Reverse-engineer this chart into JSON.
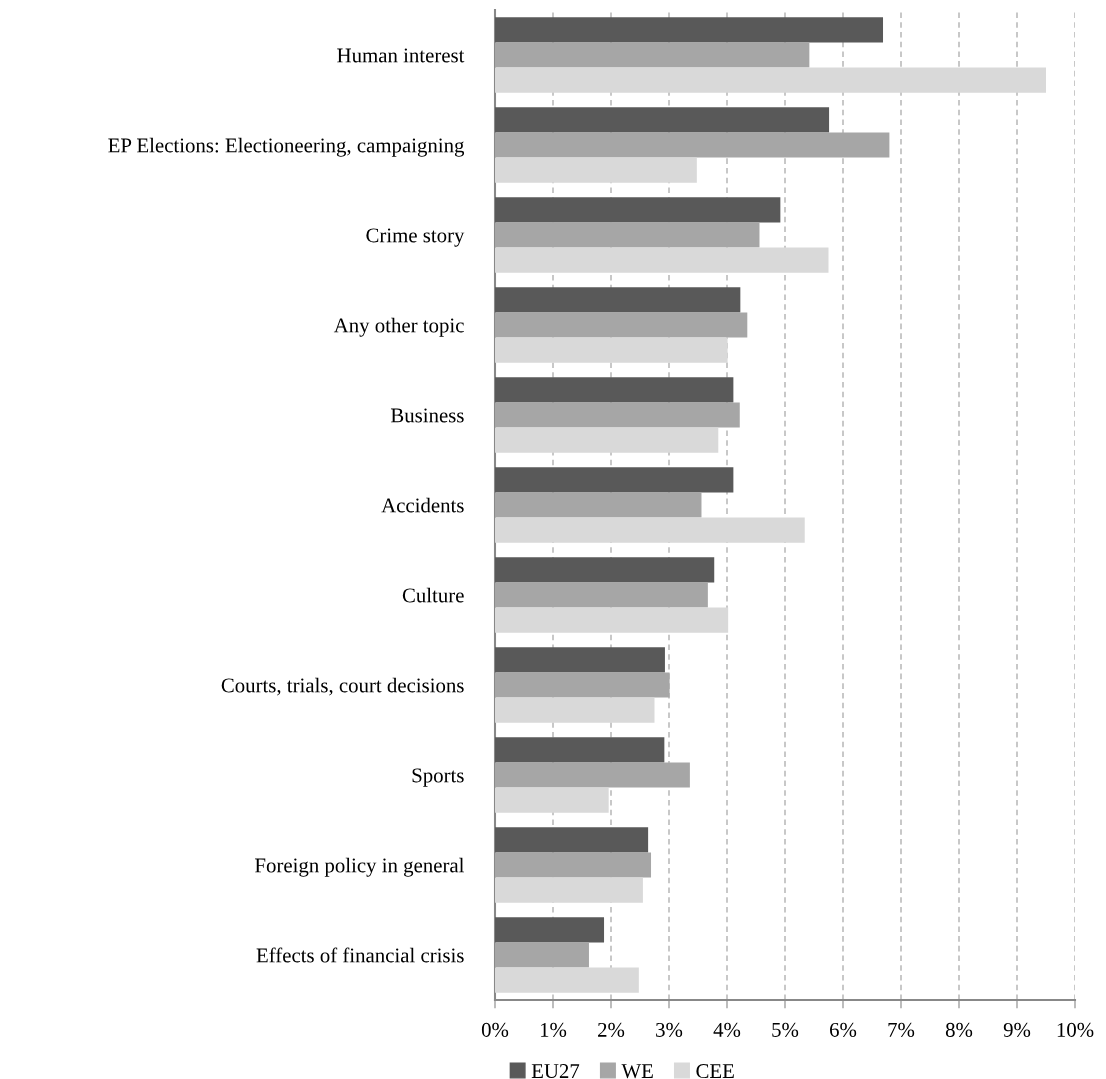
{
  "chart_data": {
    "type": "bar",
    "orientation": "horizontal",
    "categories": [
      "Human interest",
      "EP Elections: Electioneering, campaigning",
      "Crime story",
      "Any other topic",
      "Business",
      "Accidents",
      "Culture",
      "Courts, trials, court decisions",
      "Sports",
      "Foreign policy in general",
      "Effects of financial crisis"
    ],
    "series": [
      {
        "name": "EU27",
        "color": "#595959",
        "values": [
          6.69,
          5.76,
          4.92,
          4.23,
          4.11,
          4.11,
          3.78,
          2.93,
          2.92,
          2.64,
          1.88
        ]
      },
      {
        "name": "WE",
        "color": "#a6a6a6",
        "values": [
          5.42,
          6.8,
          4.56,
          4.35,
          4.22,
          3.56,
          3.67,
          3.01,
          3.36,
          2.69,
          1.62
        ]
      },
      {
        "name": "CEE",
        "color": "#d9d9d9",
        "values": [
          9.5,
          3.48,
          5.75,
          4.01,
          3.85,
          5.34,
          4.02,
          2.75,
          1.96,
          2.55,
          2.48
        ]
      }
    ],
    "xlim": [
      0,
      10
    ],
    "xticks": [
      {
        "value": 0,
        "label": "0%"
      },
      {
        "value": 1,
        "label": "1%"
      },
      {
        "value": 2,
        "label": "2%"
      },
      {
        "value": 3,
        "label": "3%"
      },
      {
        "value": 4,
        "label": "4%"
      },
      {
        "value": 5,
        "label": "5%"
      },
      {
        "value": 6,
        "label": "6%"
      },
      {
        "value": 7,
        "label": "7%"
      },
      {
        "value": 8,
        "label": "8%"
      },
      {
        "value": 9,
        "label": "9%"
      },
      {
        "value": 10,
        "label": "10%"
      }
    ],
    "grid": "x",
    "legend": "bottom"
  }
}
